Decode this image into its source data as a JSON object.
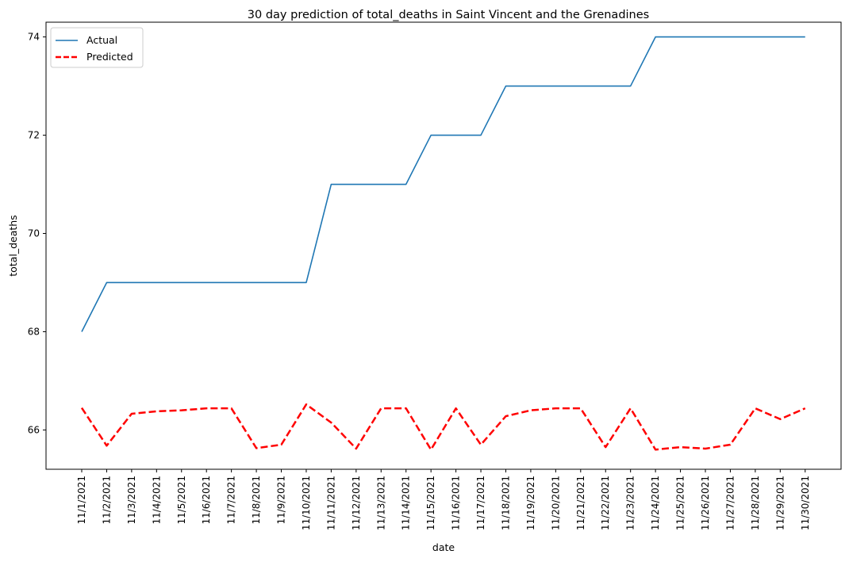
{
  "chart_data": {
    "type": "line",
    "title": "30 day prediction of total_deaths in Saint Vincent and the Grenadines",
    "xlabel": "date",
    "ylabel": "total_deaths",
    "x": [
      "11/1/2021",
      "11/2/2021",
      "11/3/2021",
      "11/4/2021",
      "11/5/2021",
      "11/6/2021",
      "11/7/2021",
      "11/8/2021",
      "11/9/2021",
      "11/10/2021",
      "11/11/2021",
      "11/12/2021",
      "11/13/2021",
      "11/14/2021",
      "11/15/2021",
      "11/16/2021",
      "11/17/2021",
      "11/18/2021",
      "11/19/2021",
      "11/20/2021",
      "11/21/2021",
      "11/22/2021",
      "11/23/2021",
      "11/24/2021",
      "11/25/2021",
      "11/26/2021",
      "11/27/2021",
      "11/28/2021",
      "11/29/2021",
      "11/30/2021"
    ],
    "ylim": [
      65.2,
      74.3
    ],
    "yticks": [
      66,
      68,
      70,
      72,
      74
    ],
    "grid": false,
    "legend_position": "top-left",
    "series": [
      {
        "name": "Actual",
        "color": "#1f77b4",
        "style": "solid",
        "values": [
          68,
          69,
          69,
          69,
          69,
          69,
          69,
          69,
          69,
          69,
          71,
          71,
          71,
          71,
          72,
          72,
          72,
          73,
          73,
          73,
          73,
          73,
          73,
          74,
          74,
          74,
          74,
          74,
          74,
          74
        ]
      },
      {
        "name": "Predicted",
        "color": "#ff0000",
        "style": "dashed",
        "values": [
          66.45,
          65.68,
          66.33,
          66.38,
          66.4,
          66.44,
          66.44,
          65.63,
          65.7,
          66.52,
          66.15,
          65.62,
          66.44,
          66.44,
          65.6,
          66.44,
          65.7,
          66.28,
          66.4,
          66.44,
          66.44,
          65.65,
          66.44,
          65.6,
          65.65,
          65.62,
          65.7,
          66.44,
          66.22,
          66.44
        ]
      }
    ]
  }
}
